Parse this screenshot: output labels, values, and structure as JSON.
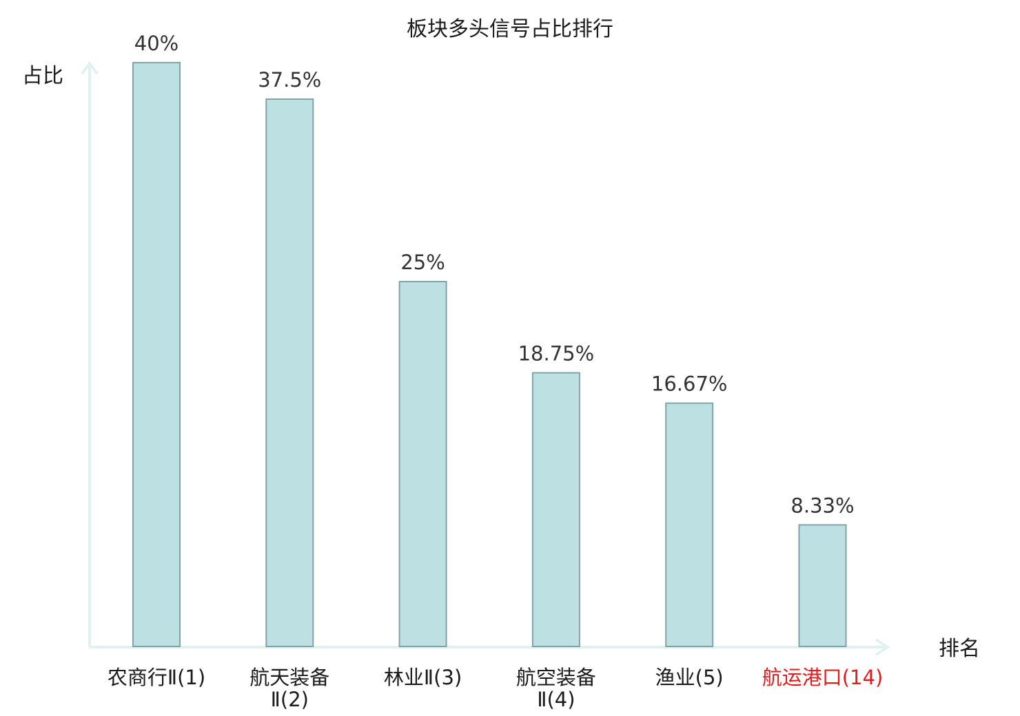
{
  "chart_data": {
    "type": "bar",
    "title": "板块多头信号占比排行",
    "ylabel": "占比",
    "xlabel": "排名",
    "categories": [
      [
        "农商行Ⅱ(1)"
      ],
      [
        "航天装备",
        "Ⅱ(2)"
      ],
      [
        "林业Ⅱ(3)"
      ],
      [
        "航空装备",
        "Ⅱ(4)"
      ],
      [
        "渔业(5)"
      ],
      [
        "航运港口(14)"
      ]
    ],
    "values": [
      40,
      37.5,
      25,
      18.75,
      16.67,
      8.33
    ],
    "value_labels": [
      "40%",
      "37.5%",
      "25%",
      "18.75%",
      "16.67%",
      "8.33%"
    ],
    "highlight_index": 5,
    "ylim": [
      0,
      40
    ],
    "grid": false,
    "colors": {
      "bar_fill": "#bde0e3",
      "bar_stroke": "#7fa3a6",
      "axis": "#dff2ef",
      "highlight_text": "#e01e1e",
      "text": "#1a1a1a"
    }
  }
}
